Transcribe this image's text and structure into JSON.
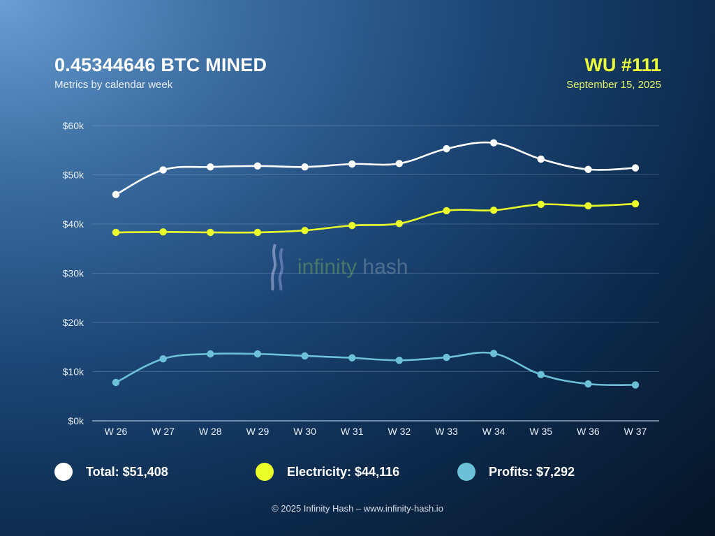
{
  "header": {
    "title": "0.45344646 BTC MINED",
    "subtitle": "Metrics by calendar week",
    "wu_label": "WU #111",
    "date": "September 15, 2025"
  },
  "watermark": {
    "brand_part1": "infinity",
    "brand_part2": "hash"
  },
  "legend": [
    {
      "label": "Total: $51,408",
      "color": "#ffffff"
    },
    {
      "label": "Electricity: $44,116",
      "color": "#eaff2a"
    },
    {
      "label": "Profits: $7,292",
      "color": "#6cc0d8"
    }
  ],
  "footer": "© 2025 Infinity Hash – www.infinity-hash.io",
  "chart_data": {
    "type": "line",
    "title": "0.45344646 BTC MINED",
    "subtitle": "Metrics by calendar week",
    "xlabel": "",
    "ylabel": "",
    "categories": [
      "W 26",
      "W 27",
      "W 28",
      "W 29",
      "W 30",
      "W 31",
      "W 32",
      "W 33",
      "W 34",
      "W 35",
      "W 36",
      "W 37"
    ],
    "ylim": [
      0,
      60
    ],
    "yticks": [
      0,
      10,
      20,
      30,
      40,
      50,
      60
    ],
    "ytick_labels": [
      "$0k",
      "$10k",
      "$20k",
      "$30k",
      "$40k",
      "$50k",
      "$60k"
    ],
    "grid": true,
    "legend_position": "bottom",
    "series": [
      {
        "name": "Total",
        "color": "#ffffff",
        "values": [
          46.0,
          51.0,
          51.6,
          51.8,
          51.6,
          52.2,
          52.3,
          55.3,
          56.5,
          53.2,
          51.1,
          51.4
        ]
      },
      {
        "name": "Electricity",
        "color": "#eaff2a",
        "values": [
          38.3,
          38.4,
          38.3,
          38.3,
          38.7,
          39.7,
          40.1,
          42.7,
          42.8,
          44.0,
          43.7,
          44.1
        ]
      },
      {
        "name": "Profits",
        "color": "#6cc0d8",
        "values": [
          7.8,
          12.6,
          13.6,
          13.6,
          13.2,
          12.8,
          12.3,
          12.9,
          13.7,
          9.4,
          7.5,
          7.3
        ]
      }
    ]
  }
}
